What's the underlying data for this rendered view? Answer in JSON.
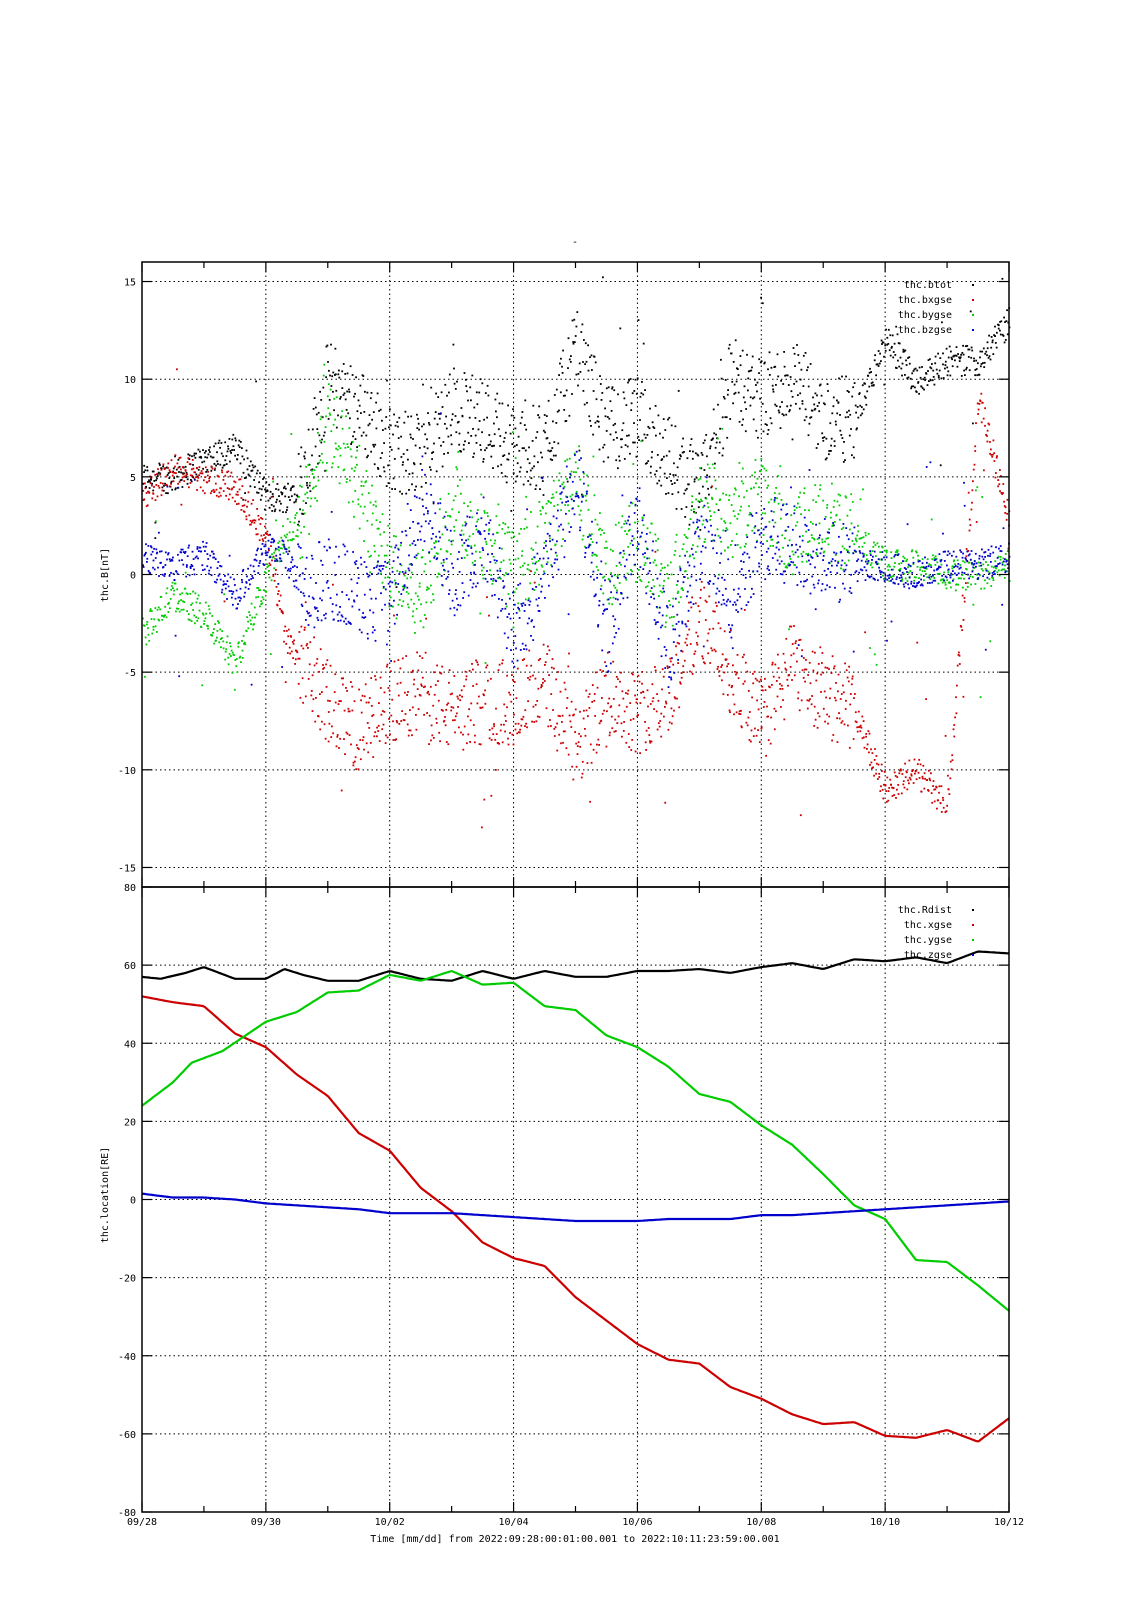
{
  "top_mark": "-",
  "x_axis": {
    "tick_labels": [
      "09/28",
      "09/30",
      "10/02",
      "10/04",
      "10/06",
      "10/08",
      "10/10",
      "10/12"
    ],
    "label": "Time [mm/dd]  from 2022:09:28:00:01:00.001  to  2022:10:11:23:59:00.001"
  },
  "chart_data": [
    {
      "type": "scatter",
      "ylabel": "thc.B[nT]",
      "xlim": [
        "2022-09-28",
        "2022-10-12"
      ],
      "ylim": [
        -16,
        16
      ],
      "y_ticks": [
        15,
        10,
        5,
        0,
        -5,
        -10,
        -15
      ],
      "grid": true,
      "legend_position": "top-right",
      "colors": {
        "thc.btot": "#000000",
        "thc.bxgse": "#cc0000",
        "thc.bygse": "#00cc00",
        "thc.bzgse": "#0000cc"
      },
      "series": [
        {
          "name": "thc.btot",
          "color": "#000000",
          "x_days": [
            0,
            0.5,
            1,
            1.5,
            2,
            2.3,
            2.6,
            3,
            3.5,
            4,
            4.5,
            5,
            5.5,
            6,
            6.5,
            7,
            7.5,
            8,
            8.5,
            9,
            9.5,
            10,
            10.5,
            11,
            11.5,
            12,
            12.5,
            13,
            13.5,
            14
          ],
          "values": [
            5,
            5,
            6,
            6.5,
            4,
            4,
            5,
            10,
            8.5,
            6.5,
            6,
            8.5,
            8,
            6.5,
            6.5,
            11.5,
            7.5,
            8,
            6,
            4,
            10,
            9,
            10,
            8,
            8,
            12,
            10,
            11,
            11,
            13
          ]
        },
        {
          "name": "thc.bxgse",
          "color": "#cc0000",
          "x_days": [
            0,
            0.5,
            1,
            1.5,
            2,
            2.3,
            2.6,
            3,
            3.5,
            4,
            4.5,
            5,
            5.5,
            6,
            6.5,
            7,
            7.5,
            8,
            8.5,
            9,
            9.5,
            10,
            10.5,
            11,
            11.5,
            12,
            12.5,
            13,
            13.5,
            14
          ],
          "values": [
            4,
            5.5,
            5,
            4.5,
            2,
            -3,
            -4.5,
            -6.5,
            -8,
            -6.5,
            -6,
            -7,
            -6.5,
            -6.5,
            -5.5,
            -9,
            -6,
            -7,
            -6,
            -2,
            -5,
            -7.5,
            -4.5,
            -6,
            -7,
            -11,
            -10,
            -12,
            9,
            3
          ]
        },
        {
          "name": "thc.bygse",
          "color": "#00cc00",
          "x_days": [
            0,
            0.5,
            1,
            1.5,
            2,
            2.3,
            2.6,
            3,
            3.5,
            4,
            4.5,
            5,
            5.5,
            6,
            6.5,
            7,
            7.5,
            8,
            8.5,
            9,
            9.5,
            10,
            10.5,
            11,
            11.5,
            12,
            12.5,
            13,
            13.5,
            14
          ],
          "values": [
            -3,
            -1,
            -2,
            -4.5,
            0,
            2,
            3,
            8,
            4.5,
            0,
            -1,
            3.5,
            2,
            0,
            2,
            5,
            0,
            2,
            -1,
            4,
            3,
            4,
            2,
            3,
            2,
            0.5,
            0.5,
            0,
            0,
            0.5
          ]
        },
        {
          "name": "thc.bzgse",
          "color": "#0000cc",
          "x_days": [
            0,
            0.5,
            1,
            1.5,
            2,
            2.3,
            2.6,
            3,
            3.5,
            4,
            4.5,
            5,
            5.5,
            6,
            6.5,
            7,
            7.5,
            8,
            8.5,
            9,
            9.5,
            10,
            10.5,
            11,
            11.5,
            12,
            12.5,
            13,
            13.5,
            14
          ],
          "values": [
            1,
            0.5,
            1,
            -1,
            1.5,
            1,
            -1,
            0,
            -1,
            -1.5,
            4,
            0,
            2,
            -3,
            0,
            5,
            -3,
            3,
            -4,
            2,
            -1,
            2,
            1.5,
            1,
            0.5,
            0.5,
            0,
            0.5,
            0.5,
            1
          ]
        }
      ]
    },
    {
      "type": "line",
      "ylabel": "thc.location[RE]",
      "xlim": [
        "2022-09-28",
        "2022-10-12"
      ],
      "ylim": [
        -80,
        80
      ],
      "y_ticks": [
        80,
        60,
        40,
        20,
        0,
        -20,
        -40,
        -60,
        -80
      ],
      "grid": true,
      "legend_position": "top-right",
      "colors": {
        "thc.Rdist": "#000000",
        "thc.xgse": "#cc0000",
        "thc.ygse": "#00cc00",
        "thc.zgse": "#0000cc"
      },
      "series": [
        {
          "name": "thc.Rdist",
          "color": "#000000",
          "x_days": [
            0,
            0.3,
            0.7,
            1,
            1.5,
            2,
            2.3,
            2.6,
            3,
            3.5,
            4,
            4.5,
            5,
            5.5,
            6,
            6.5,
            7,
            7.5,
            8,
            8.5,
            9,
            9.5,
            10,
            10.5,
            11,
            11.5,
            12,
            12.5,
            13,
            13.5,
            14
          ],
          "values": [
            57,
            56.5,
            58,
            59.5,
            56.5,
            56.5,
            59,
            57.5,
            56,
            56,
            58.5,
            56.5,
            56,
            58.5,
            56.5,
            58.5,
            57,
            57,
            58.5,
            58.5,
            59,
            58,
            59.5,
            60.5,
            59,
            61.5,
            61,
            62,
            60.5,
            63.5,
            63
          ]
        },
        {
          "name": "thc.xgse",
          "color": "#cc0000",
          "x_days": [
            0,
            0.5,
            1,
            1.5,
            2,
            2.5,
            3,
            3.5,
            4,
            4.5,
            5,
            5.5,
            6,
            6.5,
            7,
            7.5,
            8,
            8.5,
            9,
            9.5,
            10,
            10.5,
            11,
            11.5,
            12,
            12.5,
            13,
            13.5,
            14
          ],
          "values": [
            52,
            50.5,
            49.5,
            42.5,
            39,
            32,
            26.5,
            17,
            12.5,
            3,
            -3,
            -11,
            -15,
            -17,
            -25,
            -31,
            -37,
            -41,
            -42,
            -48,
            -51,
            -55,
            -57.5,
            -57,
            -60.5,
            -61,
            -59,
            -62,
            -56
          ]
        },
        {
          "name": "thc.ygse",
          "color": "#00cc00",
          "x_days": [
            0,
            0.5,
            0.8,
            1.3,
            2,
            2.5,
            3,
            3.5,
            4,
            4.5,
            5,
            5.5,
            6,
            6.5,
            7,
            7.5,
            8,
            8.5,
            9,
            9.5,
            10,
            10.5,
            11,
            11.5,
            12,
            12.5,
            13,
            13.5,
            14
          ],
          "values": [
            24,
            30,
            35,
            38,
            45.5,
            48,
            53,
            53.5,
            57.5,
            56,
            58.5,
            55,
            55.5,
            49.5,
            48.5,
            42,
            39,
            34,
            27,
            25,
            19,
            14,
            6.5,
            -1.5,
            -5,
            -15.5,
            -16,
            -22,
            -28.5
          ]
        },
        {
          "name": "thc.zgse",
          "color": "#0000cc",
          "x_days": [
            0,
            0.5,
            1,
            1.5,
            2,
            2.5,
            3,
            3.5,
            4,
            4.5,
            5,
            5.5,
            6,
            6.5,
            7,
            7.5,
            8,
            8.5,
            9,
            9.5,
            10,
            10.5,
            11,
            11.5,
            12,
            12.5,
            13,
            13.5,
            14
          ],
          "values": [
            1.5,
            0.5,
            0.5,
            0,
            -1,
            -1.5,
            -2,
            -2.5,
            -3.5,
            -3.5,
            -3.5,
            -4,
            -4.5,
            -5,
            -5.5,
            -5.5,
            -5.5,
            -5,
            -5,
            -5,
            -4,
            -4,
            -3.5,
            -3,
            -2.5,
            -2,
            -1.5,
            -1,
            -0.5
          ]
        }
      ]
    }
  ]
}
